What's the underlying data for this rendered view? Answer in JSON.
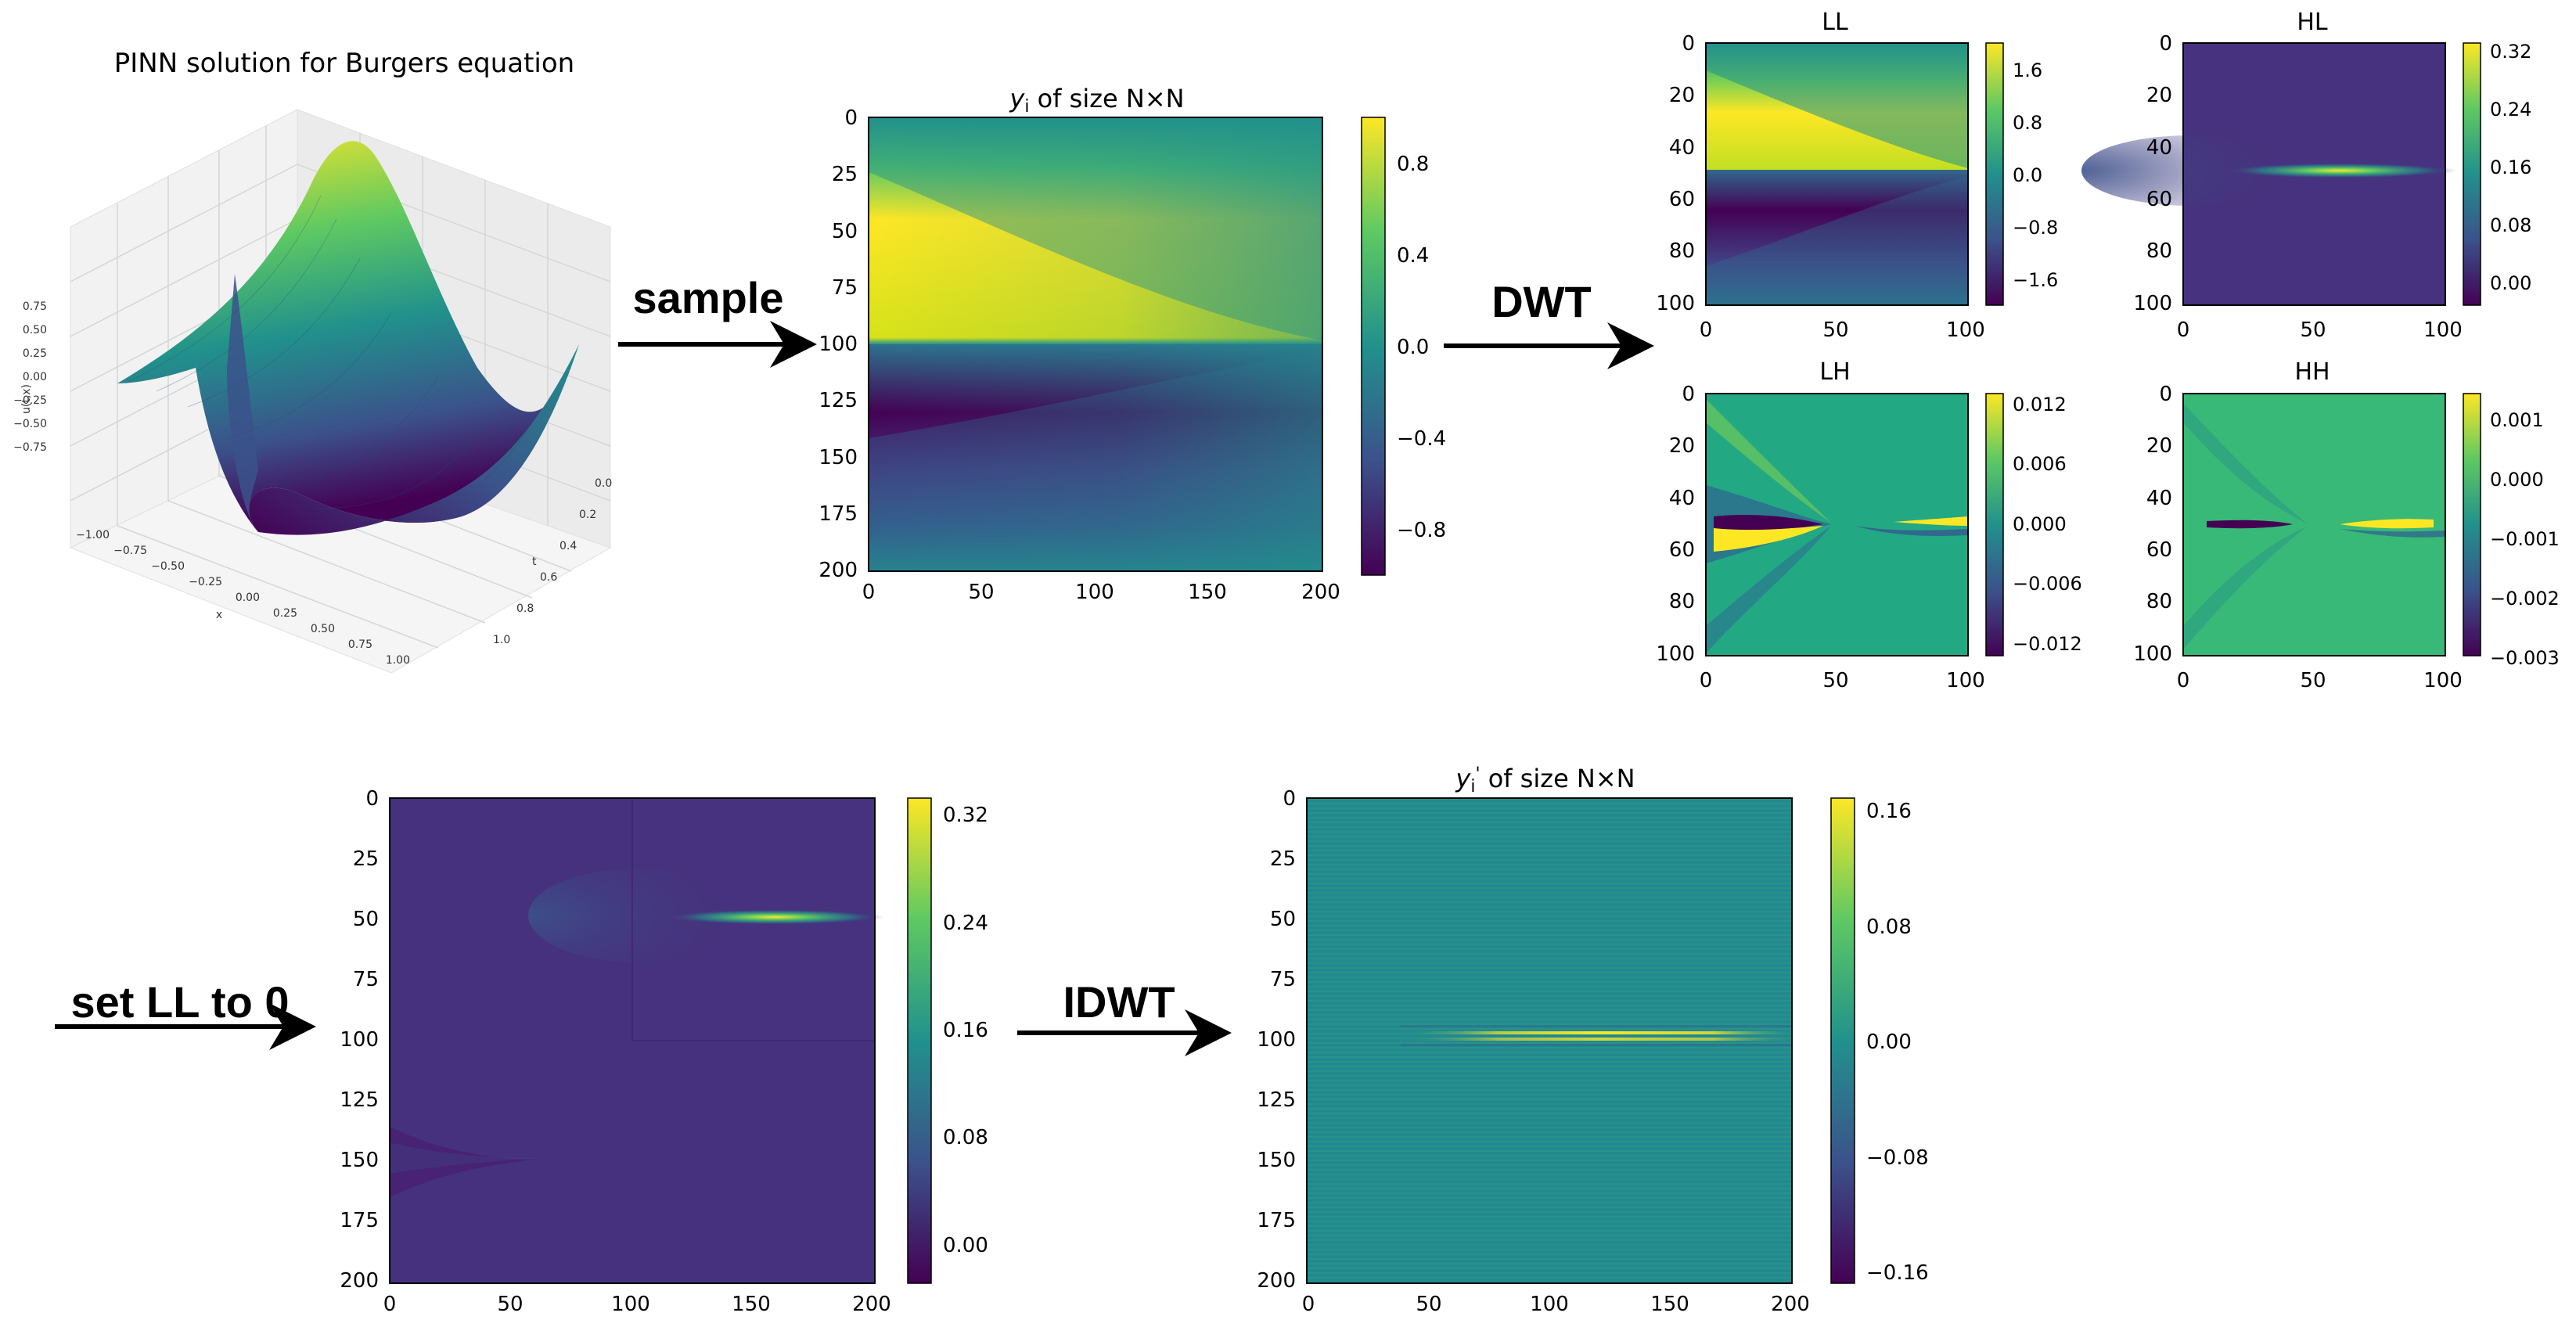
{
  "colors": {
    "viridis_dark": "#440154",
    "viridis_blue": "#3b528b",
    "viridis_teal": "#21918c",
    "viridis_green": "#5ec962",
    "viridis_yellow": "#fde725",
    "arrow": "#000000"
  },
  "steps": {
    "sample": "sample",
    "dwt": "DWT",
    "set_ll": "set LL to 0",
    "idwt": "IDWT"
  },
  "surface3d": {
    "title": "PINN solution for Burgers equation",
    "zlabel": "u(t,x)",
    "xlabel": "x",
    "tlabel": "t",
    "z_ticks": [
      "0.75",
      "0.50",
      "0.25",
      "0.00",
      "−0.25",
      "−0.50",
      "−0.75"
    ],
    "x_ticks": [
      "−1.00",
      "−0.75",
      "−0.50",
      "−0.25",
      "0.00",
      "0.25",
      "0.50",
      "0.75",
      "1.00"
    ],
    "t_ticks": [
      "0.0",
      "0.2",
      "0.4",
      "0.6",
      "0.8",
      "1.0"
    ]
  },
  "chart_data": [
    {
      "name": "sampled",
      "type": "heatmap",
      "title_var": "y",
      "title_sub": "i",
      "title_rest": " of size N×N",
      "x_ticks": [
        "0",
        "50",
        "100",
        "150",
        "200"
      ],
      "y_ticks": [
        "0",
        "25",
        "50",
        "75",
        "100",
        "125",
        "150",
        "175",
        "200"
      ],
      "xlim": [
        0,
        201
      ],
      "ylim": [
        0,
        201
      ],
      "colorbar_ticks": [
        "0.8",
        "0.4",
        "0.0",
        "−0.4",
        "−0.8"
      ],
      "colorbar_range": [
        -1.0,
        1.0
      ]
    },
    {
      "name": "LL",
      "type": "heatmap",
      "title": "LL",
      "x_ticks": [
        "0",
        "50",
        "100"
      ],
      "y_ticks": [
        "0",
        "20",
        "40",
        "60",
        "80",
        "100"
      ],
      "xlim": [
        0,
        101
      ],
      "ylim": [
        0,
        101
      ],
      "colorbar_ticks": [
        "1.6",
        "0.8",
        "0.0",
        "−0.8",
        "−1.6"
      ],
      "colorbar_range": [
        -2.0,
        2.0
      ]
    },
    {
      "name": "HL",
      "type": "heatmap",
      "title": "HL",
      "x_ticks": [
        "0",
        "50",
        "100"
      ],
      "y_ticks": [
        "0",
        "20",
        "40",
        "60",
        "80",
        "100"
      ],
      "xlim": [
        0,
        101
      ],
      "ylim": [
        0,
        101
      ],
      "colorbar_ticks": [
        "0.32",
        "0.24",
        "0.16",
        "0.08",
        "0.00"
      ],
      "colorbar_range": [
        -0.03,
        0.33
      ]
    },
    {
      "name": "LH",
      "type": "heatmap",
      "title": "LH",
      "x_ticks": [
        "0",
        "50",
        "100"
      ],
      "y_ticks": [
        "0",
        "20",
        "40",
        "60",
        "80",
        "100"
      ],
      "xlim": [
        0,
        101
      ],
      "ylim": [
        0,
        101
      ],
      "colorbar_ticks": [
        "0.012",
        "0.006",
        "0.000",
        "−0.006",
        "−0.012"
      ],
      "colorbar_range": [
        -0.014,
        0.013
      ]
    },
    {
      "name": "HH",
      "type": "heatmap",
      "title": "HH",
      "x_ticks": [
        "0",
        "50",
        "100"
      ],
      "y_ticks": [
        "0",
        "20",
        "40",
        "60",
        "80",
        "100"
      ],
      "xlim": [
        0,
        101
      ],
      "ylim": [
        0,
        101
      ],
      "colorbar_ticks": [
        "0.001",
        "0.000",
        "−0.001",
        "−0.002",
        "−0.003"
      ],
      "colorbar_range": [
        -0.0032,
        0.0015
      ]
    },
    {
      "name": "set_ll_zero",
      "type": "heatmap",
      "x_ticks": [
        "0",
        "50",
        "100",
        "150",
        "200"
      ],
      "y_ticks": [
        "0",
        "25",
        "50",
        "75",
        "100",
        "125",
        "150",
        "175",
        "200"
      ],
      "xlim": [
        0,
        201
      ],
      "ylim": [
        0,
        201
      ],
      "colorbar_ticks": [
        "0.32",
        "0.24",
        "0.16",
        "0.08",
        "0.00"
      ],
      "colorbar_range": [
        -0.03,
        0.33
      ]
    },
    {
      "name": "reconstructed",
      "type": "heatmap",
      "title_var": "y",
      "title_sub": "i",
      "title_sup": "'",
      "title_rest": " of size N×N",
      "x_ticks": [
        "0",
        "50",
        "100",
        "150",
        "200"
      ],
      "y_ticks": [
        "0",
        "25",
        "50",
        "75",
        "100",
        "125",
        "150",
        "175",
        "200"
      ],
      "xlim": [
        0,
        201
      ],
      "ylim": [
        0,
        201
      ],
      "colorbar_ticks": [
        "0.16",
        "0.08",
        "0.00",
        "−0.08",
        "−0.16"
      ],
      "colorbar_range": [
        -0.18,
        0.18
      ]
    }
  ]
}
